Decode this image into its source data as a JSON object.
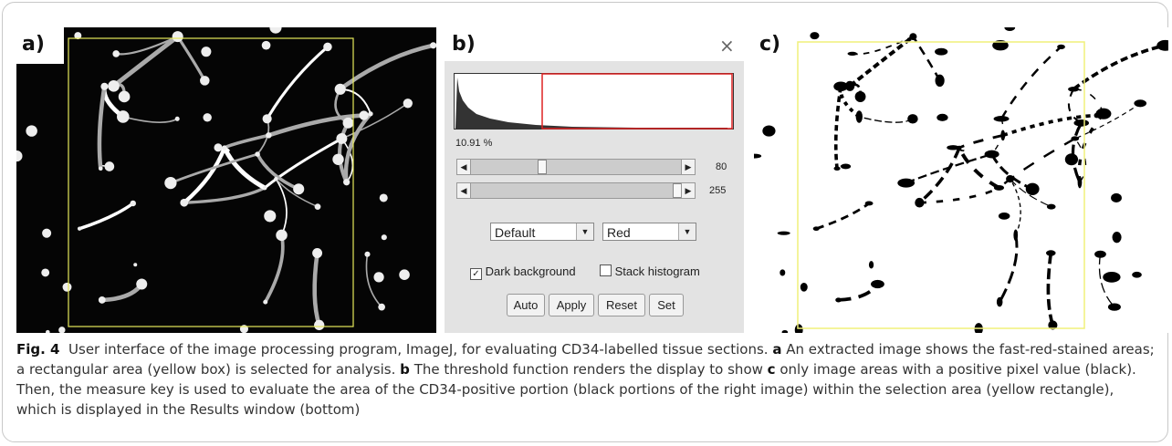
{
  "panels": {
    "a": {
      "label": "a)"
    },
    "b": {
      "label": "b)",
      "percent": "10.91 %",
      "slider_min": "80",
      "slider_max": "255",
      "method": "Default",
      "mode": "Red",
      "dark_background": "Dark background",
      "stack_histogram": "Stack histogram",
      "buttons": [
        "Auto",
        "Apply",
        "Reset",
        "Set"
      ]
    },
    "c": {
      "label": "c)"
    }
  },
  "caption": {
    "figure": "Fig. 4",
    "text": "User interface of the image processing program, ImageJ, for evaluating CD34-labelled tissue sections.",
    "parts": [
      {
        "key": "a",
        "text": "An extracted image shows the fast-red-stained areas; a rectangular area (yellow box) is selected for analysis."
      },
      {
        "key": "b",
        "text": "The threshold function renders the display to show"
      },
      {
        "key": "c",
        "text": "only image areas with a positive pixel value (black). Then, the measure key is used to evaluate the area of the CD34-positive portion (black portions of the right image) within the selection area (yellow rectangle), which is displayed in the Results window (bottom)"
      }
    ]
  }
}
